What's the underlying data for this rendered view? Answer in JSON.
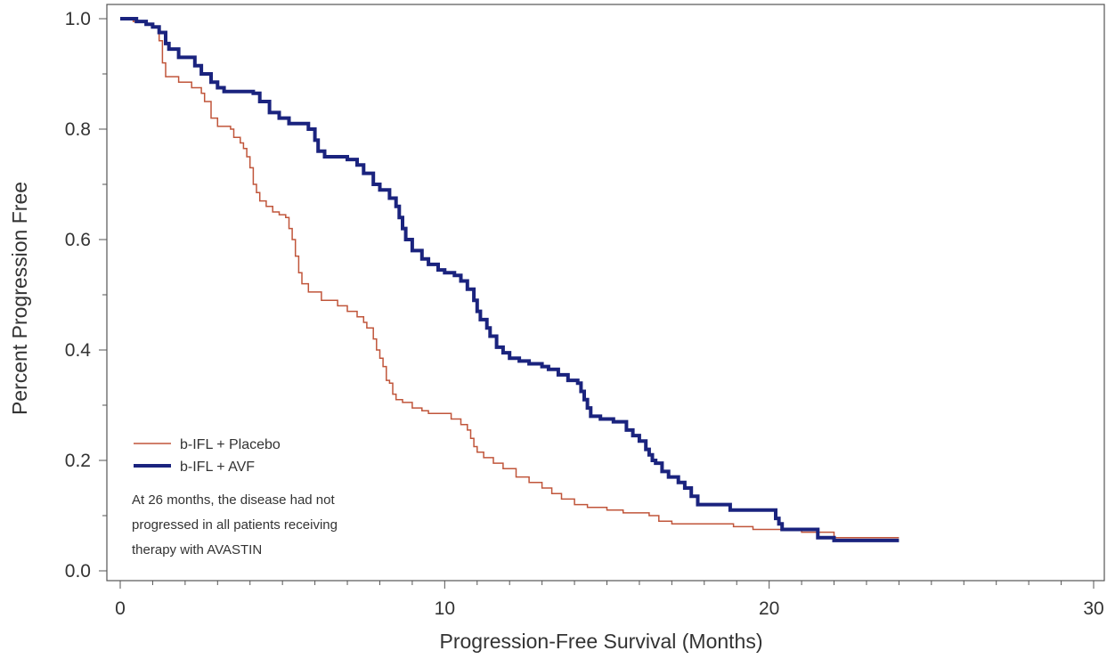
{
  "chart_data": {
    "type": "line",
    "title": "",
    "xlabel": "Progression-Free Survival (Months)",
    "ylabel": "Percent Progression Free",
    "xlim": [
      0,
      30
    ],
    "ylim": [
      0,
      1.0
    ],
    "x_ticks": [
      0,
      10,
      20,
      30
    ],
    "x_tick_labels": [
      "0",
      "10",
      "20",
      "30"
    ],
    "y_ticks": [
      0.0,
      0.2,
      0.4,
      0.6,
      0.8,
      1.0
    ],
    "y_tick_labels": [
      "0.0",
      "0.2",
      "0.4",
      "0.6",
      "0.8",
      "1.0"
    ],
    "grid": false,
    "legend_position": "bottom-left",
    "series": [
      {
        "name": "b-IFL + Placebo",
        "color": "#c0553a",
        "style": "thin-step",
        "points": [
          [
            0,
            1.0
          ],
          [
            0.4,
            0.995
          ],
          [
            0.8,
            0.99
          ],
          [
            1.0,
            0.985
          ],
          [
            1.2,
            0.96
          ],
          [
            1.3,
            0.92
          ],
          [
            1.4,
            0.895
          ],
          [
            1.8,
            0.885
          ],
          [
            2.2,
            0.875
          ],
          [
            2.5,
            0.865
          ],
          [
            2.6,
            0.85
          ],
          [
            2.8,
            0.82
          ],
          [
            3.0,
            0.805
          ],
          [
            3.4,
            0.8
          ],
          [
            3.5,
            0.785
          ],
          [
            3.7,
            0.775
          ],
          [
            3.8,
            0.765
          ],
          [
            3.9,
            0.75
          ],
          [
            4.0,
            0.73
          ],
          [
            4.1,
            0.7
          ],
          [
            4.2,
            0.685
          ],
          [
            4.3,
            0.67
          ],
          [
            4.5,
            0.66
          ],
          [
            4.7,
            0.65
          ],
          [
            4.9,
            0.645
          ],
          [
            5.1,
            0.64
          ],
          [
            5.2,
            0.62
          ],
          [
            5.3,
            0.6
          ],
          [
            5.4,
            0.57
          ],
          [
            5.5,
            0.54
          ],
          [
            5.6,
            0.52
          ],
          [
            5.8,
            0.505
          ],
          [
            6.2,
            0.49
          ],
          [
            6.7,
            0.48
          ],
          [
            7.0,
            0.47
          ],
          [
            7.3,
            0.46
          ],
          [
            7.5,
            0.45
          ],
          [
            7.6,
            0.44
          ],
          [
            7.8,
            0.42
          ],
          [
            7.9,
            0.4
          ],
          [
            8.0,
            0.385
          ],
          [
            8.1,
            0.37
          ],
          [
            8.2,
            0.345
          ],
          [
            8.3,
            0.34
          ],
          [
            8.4,
            0.32
          ],
          [
            8.5,
            0.31
          ],
          [
            8.7,
            0.305
          ],
          [
            9.0,
            0.295
          ],
          [
            9.3,
            0.29
          ],
          [
            9.5,
            0.285
          ],
          [
            10.0,
            0.285
          ],
          [
            10.2,
            0.275
          ],
          [
            10.5,
            0.265
          ],
          [
            10.7,
            0.255
          ],
          [
            10.8,
            0.24
          ],
          [
            10.9,
            0.225
          ],
          [
            11.0,
            0.215
          ],
          [
            11.2,
            0.205
          ],
          [
            11.5,
            0.195
          ],
          [
            11.8,
            0.185
          ],
          [
            12.2,
            0.17
          ],
          [
            12.6,
            0.16
          ],
          [
            13.0,
            0.15
          ],
          [
            13.3,
            0.14
          ],
          [
            13.6,
            0.13
          ],
          [
            14.0,
            0.12
          ],
          [
            14.4,
            0.115
          ],
          [
            15.0,
            0.11
          ],
          [
            15.5,
            0.105
          ],
          [
            16.3,
            0.1
          ],
          [
            16.6,
            0.09
          ],
          [
            17.0,
            0.085
          ],
          [
            18.0,
            0.085
          ],
          [
            18.9,
            0.08
          ],
          [
            19.5,
            0.075
          ],
          [
            20.0,
            0.075
          ],
          [
            21.0,
            0.07
          ],
          [
            22.0,
            0.06
          ],
          [
            23.0,
            0.06
          ],
          [
            24.0,
            0.06
          ]
        ]
      },
      {
        "name": "b-IFL + AVF",
        "color": "#1a237e",
        "style": "thick-step",
        "points": [
          [
            0,
            1.0
          ],
          [
            0.5,
            0.995
          ],
          [
            0.8,
            0.99
          ],
          [
            1.0,
            0.985
          ],
          [
            1.2,
            0.975
          ],
          [
            1.4,
            0.955
          ],
          [
            1.5,
            0.945
          ],
          [
            1.8,
            0.93
          ],
          [
            2.3,
            0.915
          ],
          [
            2.5,
            0.9
          ],
          [
            2.8,
            0.885
          ],
          [
            3.0,
            0.875
          ],
          [
            3.2,
            0.868
          ],
          [
            4.1,
            0.865
          ],
          [
            4.3,
            0.85
          ],
          [
            4.6,
            0.83
          ],
          [
            4.9,
            0.82
          ],
          [
            5.2,
            0.81
          ],
          [
            5.8,
            0.8
          ],
          [
            6.0,
            0.78
          ],
          [
            6.1,
            0.76
          ],
          [
            6.3,
            0.75
          ],
          [
            7.0,
            0.745
          ],
          [
            7.3,
            0.735
          ],
          [
            7.5,
            0.72
          ],
          [
            7.8,
            0.7
          ],
          [
            8.0,
            0.69
          ],
          [
            8.3,
            0.675
          ],
          [
            8.5,
            0.66
          ],
          [
            8.6,
            0.64
          ],
          [
            8.7,
            0.62
          ],
          [
            8.8,
            0.6
          ],
          [
            9.0,
            0.58
          ],
          [
            9.3,
            0.565
          ],
          [
            9.5,
            0.555
          ],
          [
            9.8,
            0.545
          ],
          [
            10.0,
            0.54
          ],
          [
            10.3,
            0.535
          ],
          [
            10.5,
            0.525
          ],
          [
            10.7,
            0.51
          ],
          [
            10.9,
            0.49
          ],
          [
            11.0,
            0.47
          ],
          [
            11.1,
            0.455
          ],
          [
            11.3,
            0.44
          ],
          [
            11.4,
            0.425
          ],
          [
            11.6,
            0.405
          ],
          [
            11.8,
            0.395
          ],
          [
            12.0,
            0.385
          ],
          [
            12.3,
            0.38
          ],
          [
            12.6,
            0.375
          ],
          [
            13.0,
            0.37
          ],
          [
            13.2,
            0.365
          ],
          [
            13.5,
            0.355
          ],
          [
            13.8,
            0.345
          ],
          [
            14.1,
            0.34
          ],
          [
            14.2,
            0.325
          ],
          [
            14.3,
            0.31
          ],
          [
            14.4,
            0.295
          ],
          [
            14.5,
            0.28
          ],
          [
            14.8,
            0.275
          ],
          [
            15.2,
            0.27
          ],
          [
            15.6,
            0.255
          ],
          [
            15.8,
            0.245
          ],
          [
            16.0,
            0.235
          ],
          [
            16.2,
            0.22
          ],
          [
            16.3,
            0.21
          ],
          [
            16.4,
            0.2
          ],
          [
            16.5,
            0.195
          ],
          [
            16.7,
            0.18
          ],
          [
            16.9,
            0.17
          ],
          [
            17.2,
            0.16
          ],
          [
            17.4,
            0.15
          ],
          [
            17.6,
            0.135
          ],
          [
            17.8,
            0.12
          ],
          [
            18.8,
            0.11
          ],
          [
            20.2,
            0.095
          ],
          [
            20.3,
            0.085
          ],
          [
            20.4,
            0.075
          ],
          [
            21.5,
            0.06
          ],
          [
            22.0,
            0.055
          ],
          [
            24.0,
            0.055
          ]
        ]
      }
    ],
    "annotations": [
      "At 26 months, the disease had not",
      "progressed in all patients receiving",
      "therapy with AVASTIN"
    ]
  }
}
